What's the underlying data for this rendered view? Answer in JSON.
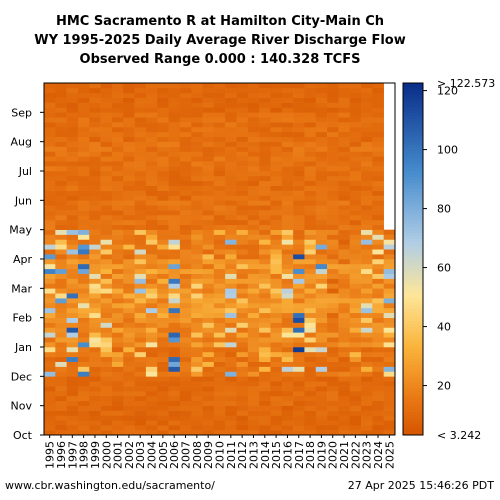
{
  "chart_data": {
    "type": "heatmap",
    "title_lines": [
      "HMC Sacramento R at Hamilton City-Main Ch",
      "WY 1995-2025 Daily Average River Discharge Flow",
      "Observed Range 0.000 : 140.328 TCFS"
    ],
    "x_categories": [
      "1995",
      "1996",
      "1997",
      "1998",
      "1999",
      "2000",
      "2001",
      "2002",
      "2003",
      "2004",
      "2005",
      "2006",
      "2007",
      "2008",
      "2009",
      "2010",
      "2011",
      "2012",
      "2013",
      "2014",
      "2015",
      "2016",
      "2017",
      "2018",
      "2019",
      "2020",
      "2021",
      "2022",
      "2023",
      "2024",
      "2025"
    ],
    "y_categories": [
      "Oct",
      "Nov",
      "Dec",
      "Jan",
      "Feb",
      "Mar",
      "Apr",
      "May",
      "Jun",
      "Jul",
      "Aug",
      "Sep"
    ],
    "colorbar": {
      "ticks": [
        20,
        40,
        60,
        80,
        100,
        120
      ],
      "range": [
        3.242,
        122.573
      ],
      "min_label": "< 3.242",
      "max_label": "> 122.573",
      "units": "TCFS"
    },
    "last_data_fraction_of_2025": 0.57,
    "water_year_peak_flow_tcfs": [
      105,
      95,
      120,
      110,
      70,
      65,
      30,
      45,
      75,
      70,
      35,
      110,
      30,
      45,
      40,
      40,
      80,
      50,
      25,
      40,
      40,
      70,
      120,
      60,
      95,
      20,
      20,
      35,
      75,
      60,
      80
    ]
  },
  "footer": {
    "url": "www.cbr.washington.edu/sacramento/",
    "timestamp": "27 Apr 2025 15:46:26 PDT"
  },
  "colors": {
    "low": "#d65500",
    "mid": "#fde69a",
    "high": "#0a2f8a"
  }
}
